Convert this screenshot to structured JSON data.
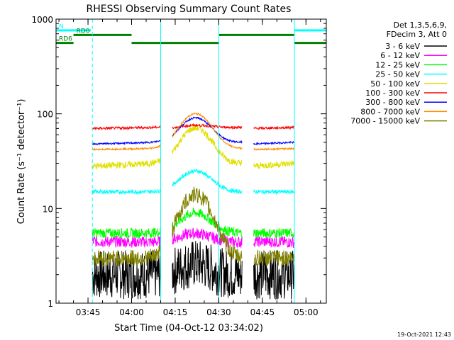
{
  "chart_data": {
    "type": "line",
    "title": "RHESSI Observing Summary Count Rates",
    "xlabel": "Start Time (04-Oct-12 03:34:02)",
    "ylabel": "Count Rate (s⁻¹ detector⁻¹)",
    "x_unit": "minutes after 03:34:02",
    "xlim": [
      0,
      93
    ],
    "ylim": [
      1,
      1000
    ],
    "yscale": "log",
    "x_ticks": [
      {
        "label": "03:45",
        "value": 11
      },
      {
        "label": "04:00",
        "value": 26
      },
      {
        "label": "04:15",
        "value": 41
      },
      {
        "label": "04:30",
        "value": 56
      },
      {
        "label": "04:45",
        "value": 71
      },
      {
        "label": "05:00",
        "value": 86
      }
    ],
    "y_ticks": [
      {
        "label": "1",
        "value": 1
      },
      {
        "label": "10",
        "value": 10
      },
      {
        "label": "100",
        "value": 100
      },
      {
        "label": "1000",
        "value": 1000
      }
    ],
    "info_lines": [
      "Det 1,3,5,6,9,",
      "FDecim 3, Att 0"
    ],
    "timestamp": "19-Oct-2021 12:43",
    "data_gaps": [
      [
        0,
        12.5
      ],
      [
        36,
        40
      ],
      [
        64,
        68
      ],
      [
        82,
        93
      ]
    ],
    "series": [
      {
        "name": "3 - 6 keV",
        "color": "#000000",
        "base": 2.0,
        "peak": 2.6,
        "edge": 2.0,
        "noise": 0.6,
        "segments": [
          [
            12.5,
            36
          ],
          [
            40,
            64
          ],
          [
            68,
            82
          ]
        ]
      },
      {
        "name": "6 - 12 keV",
        "color": "#ff00ff",
        "base": 4.5,
        "peak": 5.5,
        "edge": 4.4,
        "noise": 0.14,
        "segments": [
          [
            12.5,
            36
          ],
          [
            40,
            64
          ],
          [
            68,
            82
          ]
        ]
      },
      {
        "name": "12 - 25 keV",
        "color": "#00ff00",
        "base": 5.5,
        "peak": 9,
        "edge": 5.5,
        "noise": 0.12,
        "segments": [
          [
            12.5,
            36
          ],
          [
            40,
            64
          ],
          [
            68,
            82
          ]
        ]
      },
      {
        "name": "25 - 50 keV",
        "color": "#00ffff",
        "base": 15,
        "peak": 25,
        "edge": 15,
        "noise": 0.05,
        "segments": [
          [
            12.5,
            36
          ],
          [
            40,
            64
          ],
          [
            68,
            82
          ]
        ]
      },
      {
        "name": "50 - 100 keV",
        "color": "#e0e000",
        "base": 28,
        "peak": 70,
        "edge": 30,
        "noise": 0.08,
        "segments": [
          [
            12.5,
            36
          ],
          [
            40,
            64
          ],
          [
            68,
            82
          ]
        ]
      },
      {
        "name": "100 - 300 keV",
        "color": "#ff0000",
        "base": 70,
        "peak": 75,
        "edge": 72,
        "noise": 0.03,
        "segments": [
          [
            12.5,
            36
          ],
          [
            40,
            64
          ],
          [
            68,
            82
          ]
        ]
      },
      {
        "name": "300 - 800 keV",
        "color": "#0000ff",
        "base": 48,
        "peak": 90,
        "edge": 50,
        "noise": 0.02,
        "segments": [
          [
            12.5,
            36
          ],
          [
            40,
            64
          ],
          [
            68,
            82
          ]
        ]
      },
      {
        "name": "800 - 7000 keV",
        "color": "#ff8c00",
        "base": 42,
        "peak": 100,
        "edge": 43,
        "noise": 0.02,
        "segments": [
          [
            12.5,
            36
          ],
          [
            40,
            64
          ],
          [
            68,
            82
          ]
        ]
      },
      {
        "name": "7000 - 15000 keV",
        "color": "#808000",
        "base": 3.0,
        "peak": 14,
        "edge": 3.0,
        "noise": 0.2,
        "segments": [
          [
            12.5,
            36
          ],
          [
            40,
            64
          ],
          [
            68,
            82
          ]
        ]
      }
    ],
    "flag_bars": [
      {
        "label": "N",
        "color": "#00ffff",
        "y": 760,
        "segments": [
          [
            0,
            12
          ],
          [
            82,
            93
          ]
        ]
      },
      {
        "label": "RD0",
        "color": "#008000",
        "y": 680,
        "segments": [
          [
            6,
            26
          ],
          [
            56,
            82
          ]
        ]
      },
      {
        "label": "RD6",
        "color": "#008000",
        "y": 560,
        "segments": [
          [
            0,
            6
          ],
          [
            26,
            56
          ],
          [
            82,
            93
          ]
        ]
      }
    ],
    "vertical_markers": [
      {
        "x": 12.5,
        "color": "#00ffff",
        "style": "dashed"
      },
      {
        "x": 36,
        "color": "#00ffff",
        "style": "solid"
      },
      {
        "x": 56,
        "color": "#00ffff",
        "style": "solid"
      },
      {
        "x": 82,
        "color": "#00ffff",
        "style": "solid"
      },
      {
        "x": 93,
        "color": "#00ffff",
        "style": "dashed"
      }
    ]
  }
}
